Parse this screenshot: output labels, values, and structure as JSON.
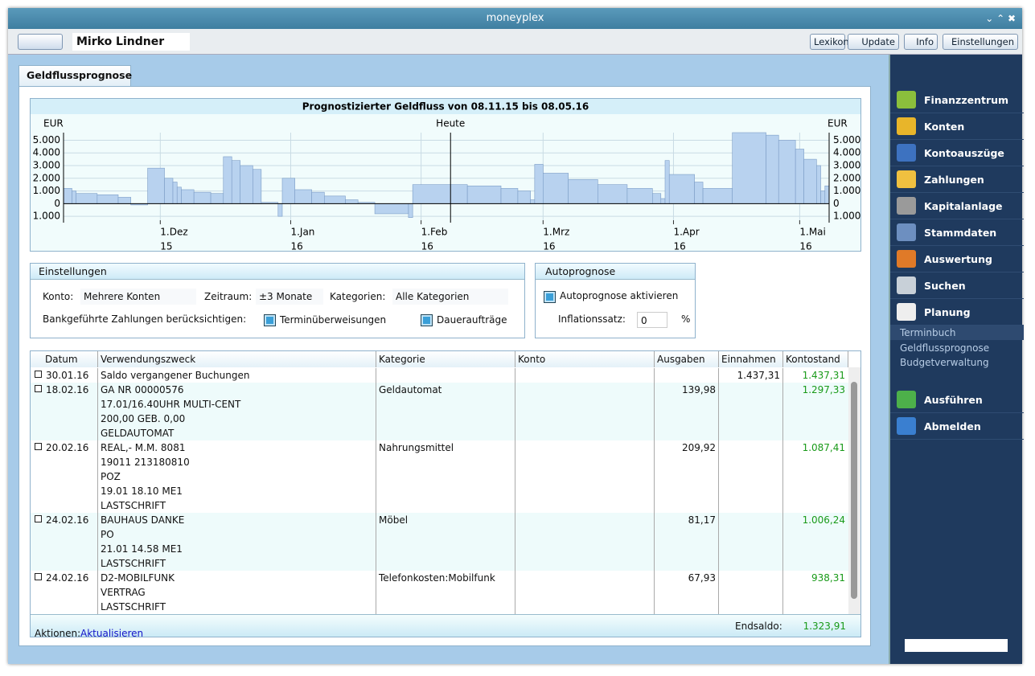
{
  "window": {
    "title": "moneyplex"
  },
  "toolbar": {
    "user": "Mirko Lindner",
    "buttons": [
      "Lexikon",
      "Update",
      "Info",
      "Einstellungen"
    ]
  },
  "tab": "Geldflussprognose",
  "chart": {
    "type": "step-area",
    "title": "Prognostizierter Geldfluss von 08.11.15 bis 08.05.16",
    "y_unit": "EUR",
    "y2_unit": "EUR",
    "color": "#b8d2ef",
    "line_color": "#7b9cc6",
    "today": {
      "label": "Heute",
      "value": "2016-02-08"
    },
    "xlim": [
      "2015-11-08",
      "2016-05-08"
    ],
    "xticks": [
      {
        "value": "2015-12-01",
        "label": "1.Dez",
        "sublabel": "15"
      },
      {
        "value": "2016-01-01",
        "label": "1.Jan",
        "sublabel": "16"
      },
      {
        "value": "2016-02-01",
        "label": "1.Feb",
        "sublabel": "16"
      },
      {
        "value": "2016-03-01",
        "label": "1.Mrz",
        "sublabel": "16"
      },
      {
        "value": "2016-04-01",
        "label": "1.Apr",
        "sublabel": "16"
      },
      {
        "value": "2016-05-01",
        "label": "1.Mai",
        "sublabel": "16"
      }
    ],
    "ylim": [
      -1500,
      5600
    ],
    "yticks": [
      {
        "value": -1000,
        "label": "1.000"
      },
      0,
      {
        "value": 1000,
        "label": "1.000"
      },
      {
        "value": 2000,
        "label": "2.000"
      },
      {
        "value": 3000,
        "label": "3.000"
      },
      {
        "value": 4000,
        "label": "4.000"
      },
      {
        "value": 5000,
        "label": "5.000"
      }
    ],
    "grid": true,
    "x": [
      "2015-11-08",
      "2015-11-10",
      "2015-11-11",
      "2015-11-16",
      "2015-11-21",
      "2015-11-24",
      "2015-11-28",
      "2015-12-02",
      "2015-12-04",
      "2015-12-05",
      "2015-12-06",
      "2015-12-09",
      "2015-12-13",
      "2015-12-16",
      "2015-12-18",
      "2015-12-20",
      "2015-12-23",
      "2015-12-25",
      "2015-12-29",
      "2015-12-30",
      "2016-01-02",
      "2016-01-06",
      "2016-01-09",
      "2016-01-14",
      "2016-01-17",
      "2016-01-21",
      "2016-01-29",
      "2016-01-30",
      "2016-02-12",
      "2016-02-20",
      "2016-02-24",
      "2016-02-27",
      "2016-02-28",
      "2016-03-01",
      "2016-03-07",
      "2016-03-14",
      "2016-03-21",
      "2016-03-27",
      "2016-03-29",
      "2016-03-30",
      "2016-03-31",
      "2016-04-06",
      "2016-04-08",
      "2016-04-15",
      "2016-04-23",
      "2016-04-26",
      "2016-04-30",
      "2016-05-02",
      "2016-05-05",
      "2016-05-06",
      "2016-05-07"
    ],
    "values": [
      1200,
      1000,
      800,
      700,
      500,
      -100,
      2800,
      2000,
      1700,
      1300,
      1100,
      900,
      800,
      3700,
      3400,
      3000,
      2700,
      100,
      -1000,
      2000,
      1100,
      900,
      600,
      300,
      100,
      -800,
      -1100,
      1500,
      1400,
      1200,
      1000,
      300,
      3100,
      2400,
      1900,
      1500,
      1200,
      800,
      400,
      3400,
      2300,
      1700,
      1200,
      5600,
      5400,
      5000,
      4300,
      3500,
      3000,
      1000,
      1400
    ]
  },
  "settings": {
    "title": "Einstellungen",
    "konto_label": "Konto:",
    "konto": "Mehrere Konten",
    "zeitraum_label": "Zeitraum:",
    "zeitraum": "±3 Monate",
    "kategorien_label": "Kategorien:",
    "kategorien": "Alle Kategorien",
    "bank_label": "Bankgeführte Zahlungen berücksichtigen:",
    "check1": "Terminüberweisungen",
    "check2": "Daueraufträge"
  },
  "autoprognose": {
    "title": "Autoprognose",
    "check": "Autoprognose aktivieren",
    "inflation_label": "Inflationssatz:",
    "inflation": "0",
    "unit": "%"
  },
  "table": {
    "columns": [
      "Datum",
      "Verwendungszweck",
      "Kategorie",
      "Konto",
      "Ausgaben",
      "Einnahmen",
      "Kontostand"
    ],
    "rows": [
      {
        "date": "30.01.16",
        "purpose": [
          "Saldo vergangener Buchungen"
        ],
        "category": "",
        "account": "",
        "out": "",
        "in": "1.437,31",
        "balance": "1.437,31"
      },
      {
        "date": "18.02.16",
        "purpose": [
          "GA NR 00000576",
          "17.01/16.40UHR MULTI-CENT",
          "200,00 GEB. 0,00",
          "GELDAUTOMAT"
        ],
        "category": "Geldautomat",
        "account": "",
        "out": "139,98",
        "in": "",
        "balance": "1.297,33"
      },
      {
        "date": "20.02.16",
        "purpose": [
          "REAL,- M.M. 8081",
          "19011 213180810",
          "POZ",
          "19.01 18.10 ME1",
          "LASTSCHRIFT"
        ],
        "category": "Nahrungsmittel",
        "account": "",
        "out": "209,92",
        "in": "",
        "balance": "1.087,41"
      },
      {
        "date": "24.02.16",
        "purpose": [
          "BAUHAUS DANKE",
          "PO",
          "21.01 14.58 ME1",
          "LASTSCHRIFT"
        ],
        "category": "Möbel",
        "account": "",
        "out": "81,17",
        "in": "",
        "balance": "1.006,24"
      },
      {
        "date": "24.02.16",
        "purpose": [
          "D2-MOBILFUNK",
          "VERTRAG",
          "LASTSCHRIFT"
        ],
        "category": "Telefonkosten:Mobilfunk",
        "account": "",
        "out": "67,93",
        "in": "",
        "balance": "938,31"
      }
    ],
    "end_label": "Endsaldo:",
    "end_value": "1.323,91",
    "actions_label": "Aktionen:",
    "action": "Aktualisieren"
  },
  "sidebar": {
    "items": [
      "Finanzzentrum",
      "Konten",
      "Kontoauszüge",
      "Zahlungen",
      "Kapitalanlage",
      "Stammdaten",
      "Auswertung",
      "Suchen",
      "Planung"
    ],
    "subitems": [
      "Terminbuch",
      "Geldflussprognose",
      "Budgetverwaltung"
    ],
    "items2": [
      "Ausführen",
      "Abmelden"
    ]
  }
}
